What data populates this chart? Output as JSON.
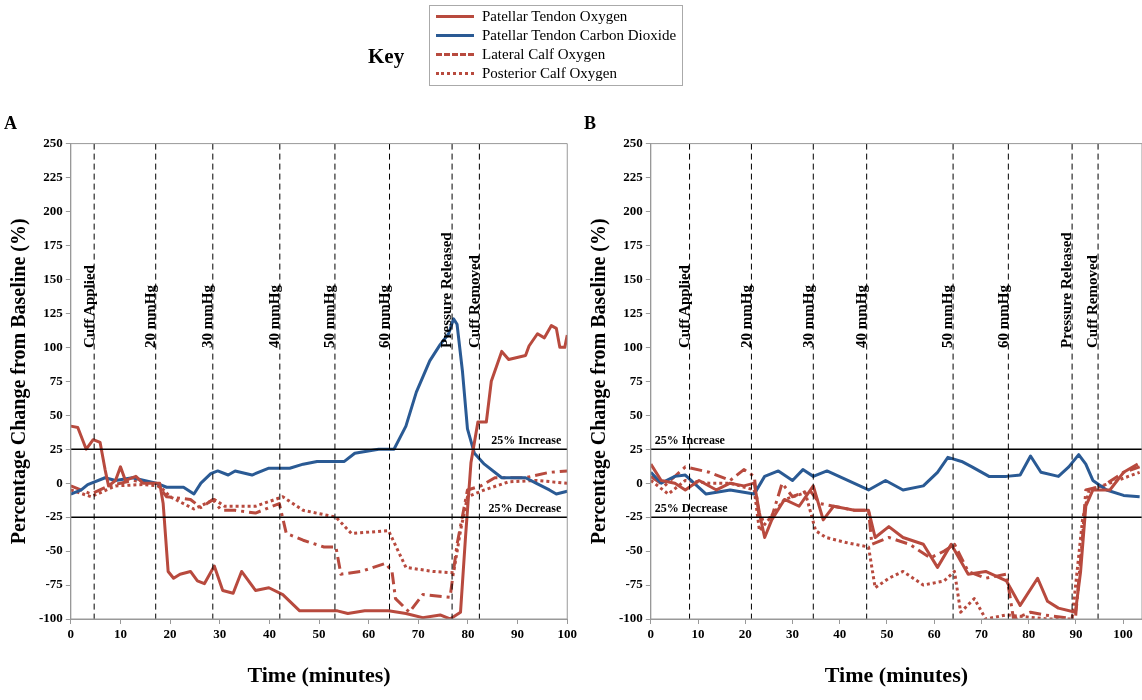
{
  "chart_data": [
    {
      "type": "line",
      "title": "A",
      "xlabel": "Time (minutes)",
      "ylabel": "Percentage Change from Baseline (%)",
      "legend": "top",
      "legend_title": "Key",
      "xlim": [
        0,
        100
      ],
      "xticks": [
        0,
        10,
        20,
        30,
        40,
        50,
        60,
        70,
        80,
        90,
        100
      ],
      "ylim": [
        -100,
        250
      ],
      "yticks": [
        -100,
        -75,
        -50,
        -25,
        0,
        25,
        50,
        75,
        100,
        125,
        150,
        175,
        200,
        225,
        250
      ],
      "grid": false,
      "series": [
        {
          "name": "Patellar Tendon Oxygen",
          "color": "#b84a3e",
          "line_style": "solid",
          "x": [
            0,
            1.4,
            3.1,
            4.5,
            5.9,
            6.9,
            7.6,
            9,
            10,
            11,
            13.1,
            14.5,
            17.9,
            18.6,
            19.6,
            20.7,
            22,
            24.1,
            25.5,
            26.9,
            28.9,
            30.6,
            32.7,
            34.4,
            37.2,
            39.9,
            42.7,
            46.1,
            53.7,
            55.8,
            59.2,
            64,
            67.5,
            70.9,
            74.4,
            76.4,
            78.5,
            79.5,
            80.6,
            82,
            83.7,
            84.7,
            86.8,
            88.2,
            91.6,
            92.3,
            94,
            95.4,
            96.8,
            97.8,
            98.5,
            99.5,
            100
          ],
          "values": [
            42,
            41,
            25,
            32,
            30,
            10,
            -2,
            2,
            12,
            2,
            5,
            0,
            0,
            -15,
            -65,
            -70,
            -67,
            -65,
            -72,
            -74,
            -61,
            -79,
            -81,
            -65,
            -79,
            -77,
            -82,
            -94,
            -94,
            -96,
            -94,
            -94,
            -96,
            -99,
            -97,
            -100,
            -95,
            -40,
            15,
            45,
            45,
            75,
            97,
            91,
            94,
            101,
            110,
            107,
            116,
            114,
            100,
            100,
            109
          ]
        },
        {
          "name": "Patellar Tendon Carbon Dioxide",
          "color": "#2a5a94",
          "line_style": "solid",
          "x": [
            0,
            2.1,
            3.4,
            6.9,
            9,
            12.4,
            17.2,
            19.3,
            22.7,
            24.8,
            26.2,
            28.2,
            29.6,
            31.7,
            33.1,
            36.5,
            39.9,
            44.1,
            46.8,
            49.6,
            55.1,
            57.2,
            62,
            65.1,
            67.5,
            69.6,
            72.3,
            74.4,
            76.1,
            77.1,
            77.8,
            78.9,
            79.9,
            81.3,
            83.3,
            86.8,
            91.6,
            93.7,
            96.4,
            97.8,
            100
          ],
          "values": [
            -8,
            -5,
            -1,
            4,
            2,
            4,
            0,
            -3,
            -3,
            -8,
            0,
            7,
            9,
            6,
            9,
            6,
            11,
            11,
            14,
            16,
            16,
            22,
            25,
            25,
            42,
            67,
            90,
            102,
            110,
            121,
            117,
            82,
            40,
            22,
            14,
            4,
            4,
            0,
            -5,
            -8,
            -6
          ]
        },
        {
          "name": "Lateral Calf Oxygen",
          "color": "#b84a3e",
          "line_style": "dashed",
          "x": [
            0,
            4.1,
            7.6,
            12.4,
            17.2,
            19.3,
            24.1,
            26.2,
            28.6,
            30.3,
            33.1,
            37.2,
            42,
            43.4,
            46.8,
            51,
            53.4,
            54.4,
            58.5,
            63.4,
            64.7,
            65.4,
            68.2,
            70.9,
            76.4,
            77.8,
            79.9,
            82.6,
            85.4,
            91.6,
            96.4,
            100
          ],
          "values": [
            -2,
            -8,
            -2,
            2,
            0,
            -10,
            -12,
            -18,
            -12,
            -20,
            -20,
            -22,
            -15,
            -37,
            -42,
            -47,
            -47,
            -67,
            -65,
            -59,
            -65,
            -85,
            -95,
            -82,
            -84,
            -45,
            -5,
            -2,
            4,
            4,
            8,
            9
          ]
        },
        {
          "name": "Posterior Calf Oxygen",
          "color": "#b84a3e",
          "line_style": "dotted",
          "x": [
            0,
            4.1,
            9,
            14.5,
            17.9,
            20,
            24.8,
            28.9,
            31,
            37.2,
            42.7,
            46.8,
            53.4,
            56.5,
            64,
            67.5,
            73,
            77.1,
            78.5,
            79.9,
            83.3,
            88.2,
            93.7,
            100
          ],
          "values": [
            -5,
            -10,
            -2,
            -1,
            -2,
            -10,
            -19,
            -12,
            -17,
            -17,
            -10,
            -20,
            -25,
            -37,
            -35,
            -62,
            -65,
            -66,
            -35,
            -10,
            -5,
            1,
            2,
            0
          ]
        }
      ],
      "ref_lines": [
        {
          "axis": "x",
          "value": 4.7,
          "label": "Cuff Applied",
          "line_style": "dashed"
        },
        {
          "axis": "x",
          "value": 17.1,
          "label": "20 mmHg",
          "line_style": "dashed"
        },
        {
          "axis": "x",
          "value": 28.6,
          "label": "30 mmHg",
          "line_style": "dashed"
        },
        {
          "axis": "x",
          "value": 42.1,
          "label": "40 mmHg",
          "line_style": "dashed"
        },
        {
          "axis": "x",
          "value": 53.2,
          "label": "50 mmHg",
          "line_style": "dashed"
        },
        {
          "axis": "x",
          "value": 64.2,
          "label": "60 mmHg",
          "line_style": "dashed"
        },
        {
          "axis": "x",
          "value": 76.8,
          "label": "Pressure Released",
          "line_style": "dashed"
        },
        {
          "axis": "x",
          "value": 82.3,
          "label": "Cuff Removed",
          "line_style": "dashed"
        },
        {
          "axis": "y",
          "value": 25,
          "label": "25% Increase",
          "line_style": "solid"
        },
        {
          "axis": "y",
          "value": -25,
          "label": "25% Decrease",
          "line_style": "solid"
        }
      ]
    },
    {
      "type": "line",
      "title": "B",
      "xlabel": "Time (minutes)",
      "ylabel": "Percentage Change from Baseline (%)",
      "xlim": [
        0,
        104
      ],
      "xticks": [
        0,
        10,
        20,
        30,
        40,
        50,
        60,
        70,
        80,
        90,
        100
      ],
      "ylim": [
        -100,
        250
      ],
      "yticks": [
        -100,
        -75,
        -50,
        -25,
        0,
        25,
        50,
        75,
        100,
        125,
        150,
        175,
        200,
        225,
        250
      ],
      "grid": false,
      "series": [
        {
          "color": "#b84a3e",
          "line_style": "solid",
          "x": [
            0,
            2.2,
            5.1,
            7.3,
            10.2,
            13.9,
            16.8,
            19.7,
            21.9,
            23,
            24.1,
            25.6,
            28.3,
            31.4,
            34.4,
            36.5,
            38.7,
            43.1,
            46.1,
            47.5,
            50.4,
            53.4,
            57.7,
            60.7,
            63.6,
            67.2,
            70.9,
            75.3,
            78.2,
            81.9,
            84,
            86.3,
            89.9,
            91,
            92.1,
            93.6,
            97.2,
            100.1,
            103.1
          ],
          "values": [
            14,
            2,
            0,
            -5,
            2,
            -5,
            0,
            -2,
            0,
            -22,
            -40,
            -27,
            -12,
            -17,
            -2,
            -27,
            -17,
            -20,
            -20,
            -40,
            -32,
            -40,
            -45,
            -62,
            -45,
            -67,
            -65,
            -72,
            -90,
            -70,
            -87,
            -92,
            -95,
            -65,
            -17,
            -5,
            -5,
            8,
            14
          ]
        },
        {
          "color": "#2a5a94",
          "line_style": "solid",
          "x": [
            0,
            2.2,
            5.1,
            7.3,
            11.7,
            16.8,
            21.9,
            24.1,
            27,
            30,
            32.2,
            34.4,
            37.3,
            41.7,
            46.1,
            49.7,
            53.4,
            57.7,
            60.7,
            62.9,
            65.8,
            68,
            71.6,
            75.3,
            78.2,
            80.4,
            82.6,
            86.3,
            88.5,
            90.6,
            92.1,
            93.6,
            96.5,
            100.1,
            103.5
          ],
          "values": [
            8,
            0,
            5,
            6,
            -8,
            -5,
            -8,
            5,
            9,
            2,
            10,
            5,
            9,
            2,
            -5,
            2,
            -5,
            -2,
            8,
            19,
            16,
            12,
            5,
            5,
            6,
            20,
            8,
            5,
            12,
            21,
            14,
            2,
            -5,
            -9,
            -10
          ]
        },
        {
          "color": "#b84a3e",
          "line_style": "dashed",
          "x": [
            0,
            2.9,
            7.3,
            12.4,
            16.8,
            19.7,
            21.9,
            23,
            25.6,
            27.8,
            30,
            33.6,
            35.8,
            38.7,
            43.1,
            46.1,
            46.8,
            50.4,
            54.8,
            59.2,
            62.1,
            64.3,
            67.2,
            70.9,
            75.3,
            76.8,
            80.4,
            83.3,
            89.9,
            91.4,
            92.1,
            95.8,
            100.1,
            103.5
          ],
          "values": [
            5,
            -2,
            12,
            8,
            2,
            10,
            5,
            -27,
            -25,
            0,
            -10,
            -5,
            -15,
            -17,
            -20,
            -20,
            -45,
            -40,
            -45,
            -55,
            -50,
            -45,
            -65,
            -70,
            -67,
            -100,
            -95,
            -97,
            -100,
            -40,
            -5,
            -2,
            8,
            12
          ]
        },
        {
          "color": "#b84a3e",
          "line_style": "dotted",
          "x": [
            0,
            3.7,
            7.3,
            12.4,
            16.8,
            21.9,
            23,
            24.9,
            28.3,
            32.7,
            34.9,
            37.1,
            41.7,
            46.1,
            47.5,
            50.4,
            53.4,
            57.7,
            62.1,
            64.3,
            65.6,
            68.5,
            70.9,
            75.3,
            84,
            89.2,
            91.4,
            92.8,
            97.2,
            103.5
          ],
          "values": [
            2,
            -8,
            2,
            0,
            0,
            -5,
            -35,
            -27,
            -12,
            -7,
            -35,
            -40,
            -44,
            -47,
            -77,
            -70,
            -65,
            -75,
            -72,
            -65,
            -95,
            -85,
            -100,
            -97,
            -100,
            -100,
            -27,
            -5,
            0,
            8
          ]
        }
      ],
      "ref_lines": [
        {
          "axis": "x",
          "value": 8.2,
          "label": "Cuff Applied",
          "line_style": "dashed"
        },
        {
          "axis": "x",
          "value": 21.3,
          "label": "20 mmHg",
          "line_style": "dashed"
        },
        {
          "axis": "x",
          "value": 34.4,
          "label": "30 mmHg",
          "line_style": "dashed"
        },
        {
          "axis": "x",
          "value": 45.7,
          "label": "40 mmHg",
          "line_style": "dashed"
        },
        {
          "axis": "x",
          "value": 64,
          "label": "50 mmHg",
          "line_style": "dashed"
        },
        {
          "axis": "x",
          "value": 75.7,
          "label": "60 mmHg",
          "line_style": "dashed"
        },
        {
          "axis": "x",
          "value": 89.2,
          "label": "Pressure Released",
          "line_style": "dashed"
        },
        {
          "axis": "x",
          "value": 94.7,
          "label": "Cuff Removed",
          "line_style": "dashed"
        },
        {
          "axis": "y",
          "value": 25,
          "label": "25% Increase",
          "line_style": "solid"
        },
        {
          "axis": "y",
          "value": -25,
          "label": "25% Decrease",
          "line_style": "solid"
        }
      ]
    }
  ]
}
